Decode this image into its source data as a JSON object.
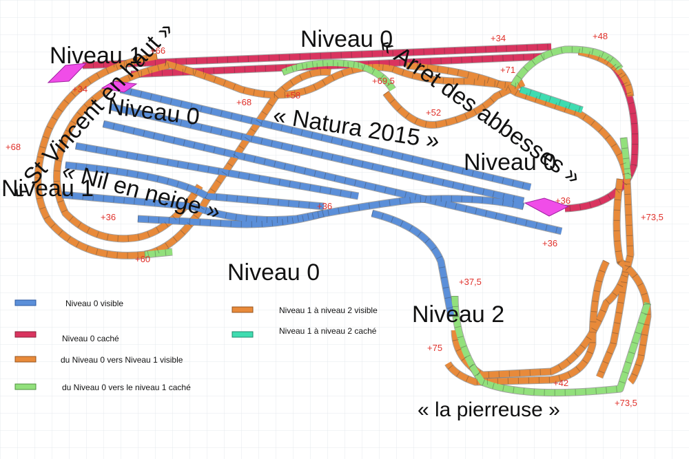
{
  "labels": [
    "Niveau 1",
    "Niveau 0",
    "« St Vincent en haut »",
    "« Arret des abbesses »",
    "Niveau 0",
    "« Natura 2015 »",
    "Niveau 0",
    "Niveau 1",
    "« Nil en neige »",
    "Niveau 0",
    "Niveau 2",
    "« la pierreuse »"
  ],
  "heights": [
    "+66",
    "+34",
    "+48",
    "+34",
    "+71",
    "+69,5",
    "+58",
    "+68",
    "+52",
    "+68",
    "+36",
    "+73,5",
    "+36",
    "+36",
    "+36",
    "+60",
    "+37,5",
    "+75",
    "+42",
    "+73,5"
  ],
  "legend": [
    "Niveau 0 visible",
    "Niveau 0 caché",
    "du Niveau 0 vers Niveau 1 visible",
    "du Niveau 0 vers le niveau 1 caché",
    "Niveau 1 à niveau 2 visible",
    "Niveau 1 à niveau 2 caché"
  ]
}
